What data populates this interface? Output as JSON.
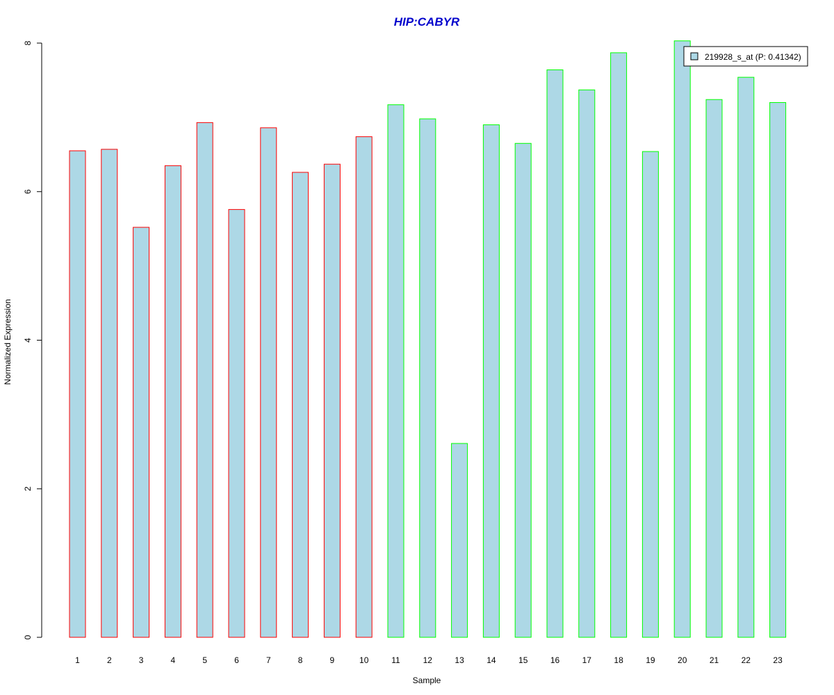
{
  "chart_data": {
    "type": "bar",
    "title": "HIP:CABYR",
    "xlabel": "Sample",
    "ylabel": "Normalized Expression",
    "ylim": [
      0,
      8
    ],
    "yticks": [
      0,
      2,
      4,
      6,
      8
    ],
    "categories": [
      "1",
      "2",
      "3",
      "4",
      "5",
      "6",
      "7",
      "8",
      "9",
      "10",
      "11",
      "12",
      "13",
      "14",
      "15",
      "16",
      "17",
      "18",
      "19",
      "20",
      "21",
      "22",
      "23"
    ],
    "values": [
      6.55,
      6.57,
      5.52,
      6.35,
      6.93,
      5.76,
      6.86,
      6.26,
      6.37,
      6.74,
      7.17,
      6.98,
      2.61,
      6.9,
      6.65,
      7.64,
      7.37,
      7.87,
      6.54,
      8.03,
      7.24,
      7.54,
      7.2
    ],
    "groups": [
      "red",
      "red",
      "red",
      "red",
      "red",
      "red",
      "red",
      "red",
      "red",
      "red",
      "green",
      "green",
      "green",
      "green",
      "green",
      "green",
      "green",
      "green",
      "green",
      "green",
      "green",
      "green",
      "green"
    ],
    "legend": {
      "label": "219928_s_at (P: 0.41342)",
      "position": "top-right"
    },
    "grid": false
  },
  "colors": {
    "bar_fill": "#add8e6",
    "group_red": "#ff0000",
    "group_green": "#00ff00",
    "title": "#0000cc"
  }
}
